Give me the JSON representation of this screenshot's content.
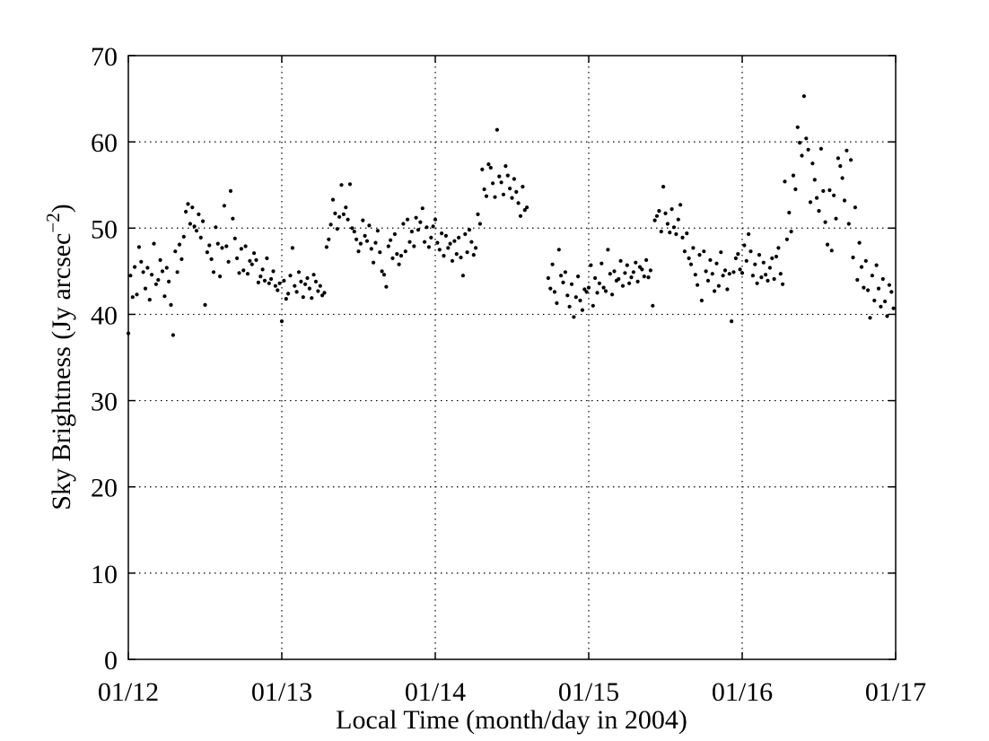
{
  "chart_data": {
    "type": "scatter",
    "xlabel": "Local Time (month/day in 2004)",
    "ylabel": "Sky Brightness (Jy arcsec",
    "ylabel_exponent": "−2",
    "ylabel_close": ")",
    "xlim": [
      "2004-01-12",
      "2004-01-17"
    ],
    "x_unit": "day",
    "ylim": [
      0,
      70
    ],
    "x_ticks": [
      "01/12",
      "01/13",
      "01/14",
      "01/15",
      "01/16",
      "01/17"
    ],
    "y_ticks": [
      "0",
      "10",
      "20",
      "30",
      "40",
      "50",
      "60",
      "70"
    ],
    "grid": true,
    "marker_color": "#000000",
    "series": [
      {
        "x": [
          "2004-01-12 00:00",
          "2004-01-12 00:20",
          "2004-01-12 00:40",
          "2004-01-12 01:00",
          "2004-01-12 01:20",
          "2004-01-12 01:40",
          "2004-01-12 02:00",
          "2004-01-12 02:20",
          "2004-01-12 02:40",
          "2004-01-12 03:00",
          "2004-01-12 03:20",
          "2004-01-12 03:40",
          "2004-01-12 04:00",
          "2004-01-12 04:20",
          "2004-01-12 04:40",
          "2004-01-12 05:00",
          "2004-01-12 05:20",
          "2004-01-12 05:40",
          "2004-01-12 06:00",
          "2004-01-12 06:20",
          "2004-01-12 06:40",
          "2004-01-12 07:00",
          "2004-01-12 07:20",
          "2004-01-12 07:40",
          "2004-01-12 08:00",
          "2004-01-12 08:20",
          "2004-01-12 08:40",
          "2004-01-12 09:00",
          "2004-01-12 09:20",
          "2004-01-12 09:40",
          "2004-01-12 10:00",
          "2004-01-12 10:20",
          "2004-01-12 10:40",
          "2004-01-12 11:00",
          "2004-01-12 11:20",
          "2004-01-12 11:40",
          "2004-01-12 12:00",
          "2004-01-12 12:20",
          "2004-01-12 12:40",
          "2004-01-12 13:00",
          "2004-01-12 13:20",
          "2004-01-12 13:40",
          "2004-01-12 14:00",
          "2004-01-12 14:20",
          "2004-01-12 14:40",
          "2004-01-12 15:00",
          "2004-01-12 15:20",
          "2004-01-12 15:40",
          "2004-01-12 16:00",
          "2004-01-12 16:20",
          "2004-01-12 16:40",
          "2004-01-12 17:00",
          "2004-01-12 17:20",
          "2004-01-12 17:40",
          "2004-01-12 18:00",
          "2004-01-12 18:20",
          "2004-01-12 18:40",
          "2004-01-12 19:00",
          "2004-01-12 19:20",
          "2004-01-12 19:40",
          "2004-01-12 20:00",
          "2004-01-12 20:20",
          "2004-01-12 20:40",
          "2004-01-12 21:00",
          "2004-01-12 21:20",
          "2004-01-12 21:40",
          "2004-01-12 22:00",
          "2004-01-12 22:20",
          "2004-01-12 22:40",
          "2004-01-12 23:00",
          "2004-01-12 23:20",
          "2004-01-12 23:40",
          "2004-01-13 00:00",
          "2004-01-13 00:20",
          "2004-01-13 00:40",
          "2004-01-13 01:00",
          "2004-01-13 01:20",
          "2004-01-13 01:40",
          "2004-01-13 02:00",
          "2004-01-13 02:20",
          "2004-01-13 02:40",
          "2004-01-13 03:00",
          "2004-01-13 03:20",
          "2004-01-13 03:40",
          "2004-01-13 04:00",
          "2004-01-13 04:20",
          "2004-01-13 04:40",
          "2004-01-13 05:00",
          "2004-01-13 05:20",
          "2004-01-13 05:40",
          "2004-01-13 06:00",
          "2004-01-13 06:20",
          "2004-01-13 06:40",
          "2004-01-13 07:00",
          "2004-01-13 07:20",
          "2004-01-13 07:40",
          "2004-01-13 08:00",
          "2004-01-13 08:20",
          "2004-01-13 08:40",
          "2004-01-13 09:00",
          "2004-01-13 09:20",
          "2004-01-13 09:40",
          "2004-01-13 10:00",
          "2004-01-13 10:20",
          "2004-01-13 10:40",
          "2004-01-13 11:00",
          "2004-01-13 11:20",
          "2004-01-13 11:40",
          "2004-01-13 12:00",
          "2004-01-13 12:20",
          "2004-01-13 12:40",
          "2004-01-13 13:00",
          "2004-01-13 13:20",
          "2004-01-13 13:40",
          "2004-01-13 14:00",
          "2004-01-13 14:20",
          "2004-01-13 14:40",
          "2004-01-13 15:00",
          "2004-01-13 15:20",
          "2004-01-13 15:40",
          "2004-01-13 16:00",
          "2004-01-13 16:20",
          "2004-01-13 16:40",
          "2004-01-13 17:00",
          "2004-01-13 17:20",
          "2004-01-13 17:40",
          "2004-01-13 18:00",
          "2004-01-13 18:20",
          "2004-01-13 18:40",
          "2004-01-13 19:00",
          "2004-01-13 19:20",
          "2004-01-13 19:40",
          "2004-01-13 20:00",
          "2004-01-13 20:20",
          "2004-01-13 20:40",
          "2004-01-13 21:00",
          "2004-01-13 21:20",
          "2004-01-13 21:40",
          "2004-01-13 22:00",
          "2004-01-13 22:20",
          "2004-01-13 22:40",
          "2004-01-13 23:00",
          "2004-01-13 23:20",
          "2004-01-13 23:40",
          "2004-01-14 00:00",
          "2004-01-14 00:20",
          "2004-01-14 00:40",
          "2004-01-14 01:00",
          "2004-01-14 01:20",
          "2004-01-14 01:40",
          "2004-01-14 02:00",
          "2004-01-14 02:20",
          "2004-01-14 02:40",
          "2004-01-14 03:00",
          "2004-01-14 03:20",
          "2004-01-14 03:40",
          "2004-01-14 04:00",
          "2004-01-14 04:20",
          "2004-01-14 04:40",
          "2004-01-14 05:00",
          "2004-01-14 05:20",
          "2004-01-14 05:40",
          "2004-01-14 06:00",
          "2004-01-14 06:20",
          "2004-01-14 06:40",
          "2004-01-14 07:00",
          "2004-01-14 07:20",
          "2004-01-14 07:40",
          "2004-01-14 08:00",
          "2004-01-14 08:20",
          "2004-01-14 08:40",
          "2004-01-14 09:00",
          "2004-01-14 09:20",
          "2004-01-14 09:40",
          "2004-01-14 10:00",
          "2004-01-14 10:20",
          "2004-01-14 10:40",
          "2004-01-14 11:00",
          "2004-01-14 11:20",
          "2004-01-14 11:40",
          "2004-01-14 12:00",
          "2004-01-14 12:20",
          "2004-01-14 12:40",
          "2004-01-14 13:00",
          "2004-01-14 13:20",
          "2004-01-14 13:40",
          "2004-01-14 14:00",
          "2004-01-14 14:20",
          "2004-01-14 17:40",
          "2004-01-14 18:00",
          "2004-01-14 18:20",
          "2004-01-14 18:40",
          "2004-01-14 19:00",
          "2004-01-14 19:20",
          "2004-01-14 19:40",
          "2004-01-14 20:00",
          "2004-01-14 20:20",
          "2004-01-14 20:40",
          "2004-01-14 21:00",
          "2004-01-14 21:20",
          "2004-01-14 21:40",
          "2004-01-14 22:00",
          "2004-01-14 22:20",
          "2004-01-14 22:40",
          "2004-01-14 23:00",
          "2004-01-14 23:20",
          "2004-01-14 23:40",
          "2004-01-15 00:00",
          "2004-01-15 00:20",
          "2004-01-15 00:40",
          "2004-01-15 01:00",
          "2004-01-15 01:20",
          "2004-01-15 01:40",
          "2004-01-15 02:00",
          "2004-01-15 02:20",
          "2004-01-15 02:40",
          "2004-01-15 03:00",
          "2004-01-15 03:20",
          "2004-01-15 03:40",
          "2004-01-15 04:00",
          "2004-01-15 04:20",
          "2004-01-15 04:40",
          "2004-01-15 05:00",
          "2004-01-15 05:20",
          "2004-01-15 05:40",
          "2004-01-15 06:00",
          "2004-01-15 06:20",
          "2004-01-15 06:40",
          "2004-01-15 07:00",
          "2004-01-15 07:20",
          "2004-01-15 07:40",
          "2004-01-15 08:00",
          "2004-01-15 08:20",
          "2004-01-15 08:40",
          "2004-01-15 09:00",
          "2004-01-15 09:20",
          "2004-01-15 09:40",
          "2004-01-15 10:00",
          "2004-01-15 10:20",
          "2004-01-15 10:40",
          "2004-01-15 11:00",
          "2004-01-15 11:20",
          "2004-01-15 11:40",
          "2004-01-15 12:00",
          "2004-01-15 12:20",
          "2004-01-15 12:40",
          "2004-01-15 13:00",
          "2004-01-15 13:20",
          "2004-01-15 13:40",
          "2004-01-15 14:00",
          "2004-01-15 14:20",
          "2004-01-15 14:40",
          "2004-01-15 15:00",
          "2004-01-15 15:20",
          "2004-01-15 15:40",
          "2004-01-15 16:00",
          "2004-01-15 16:20",
          "2004-01-15 16:40",
          "2004-01-15 17:00",
          "2004-01-15 17:20",
          "2004-01-15 17:40",
          "2004-01-15 18:00",
          "2004-01-15 18:20",
          "2004-01-15 18:40",
          "2004-01-15 19:00",
          "2004-01-15 19:20",
          "2004-01-15 19:40",
          "2004-01-15 20:00",
          "2004-01-15 20:20",
          "2004-01-15 20:40",
          "2004-01-15 21:00",
          "2004-01-15 21:20",
          "2004-01-15 21:40",
          "2004-01-15 22:00",
          "2004-01-15 22:20",
          "2004-01-15 22:40",
          "2004-01-15 23:00",
          "2004-01-15 23:20",
          "2004-01-15 23:40",
          "2004-01-16 00:00",
          "2004-01-16 00:20",
          "2004-01-16 00:40",
          "2004-01-16 01:00",
          "2004-01-16 01:20",
          "2004-01-16 01:40",
          "2004-01-16 02:00",
          "2004-01-16 02:20",
          "2004-01-16 02:40",
          "2004-01-16 03:00",
          "2004-01-16 03:20",
          "2004-01-16 03:40",
          "2004-01-16 04:00",
          "2004-01-16 04:20",
          "2004-01-16 04:40",
          "2004-01-16 05:00",
          "2004-01-16 05:20",
          "2004-01-16 05:40",
          "2004-01-16 06:00",
          "2004-01-16 06:20",
          "2004-01-16 06:40",
          "2004-01-16 07:00",
          "2004-01-16 07:20",
          "2004-01-16 07:40",
          "2004-01-16 08:00",
          "2004-01-16 08:20",
          "2004-01-16 08:40",
          "2004-01-16 09:00",
          "2004-01-16 09:20",
          "2004-01-16 09:40",
          "2004-01-16 10:00",
          "2004-01-16 10:20",
          "2004-01-16 10:40",
          "2004-01-16 11:00",
          "2004-01-16 11:20",
          "2004-01-16 11:40",
          "2004-01-16 12:00",
          "2004-01-16 12:20",
          "2004-01-16 12:40",
          "2004-01-16 13:00",
          "2004-01-16 13:20",
          "2004-01-16 13:40",
          "2004-01-16 14:00",
          "2004-01-16 14:20",
          "2004-01-16 14:40",
          "2004-01-16 15:00",
          "2004-01-16 15:20",
          "2004-01-16 15:40",
          "2004-01-16 16:00",
          "2004-01-16 16:20",
          "2004-01-16 16:40",
          "2004-01-16 17:00",
          "2004-01-16 17:20",
          "2004-01-16 17:40",
          "2004-01-16 18:00",
          "2004-01-16 18:20",
          "2004-01-16 18:40",
          "2004-01-16 19:00",
          "2004-01-16 19:20",
          "2004-01-16 19:40",
          "2004-01-16 20:00",
          "2004-01-16 20:20",
          "2004-01-16 20:40",
          "2004-01-16 21:00",
          "2004-01-16 21:20",
          "2004-01-16 21:40",
          "2004-01-16 22:00",
          "2004-01-16 22:20",
          "2004-01-16 22:40",
          "2004-01-16 23:00",
          "2004-01-16 23:20",
          "2004-01-16 23:40"
        ],
        "y": [
          37.8,
          44.5,
          42.0,
          45.5,
          42.3,
          47.8,
          46.1,
          44.9,
          43.0,
          45.4,
          41.7,
          44.6,
          48.2,
          43.5,
          44.0,
          46.3,
          45.0,
          42.1,
          45.4,
          43.8,
          41.1,
          37.6,
          47.3,
          44.9,
          48.1,
          46.4,
          49.0,
          51.9,
          52.8,
          50.5,
          52.4,
          50.2,
          49.7,
          51.6,
          48.9,
          50.8,
          41.1,
          47.2,
          48.0,
          46.4,
          44.9,
          50.1,
          48.2,
          44.4,
          47.7,
          52.6,
          47.9,
          46.1,
          54.3,
          51.1,
          48.8,
          46.5,
          44.8,
          47.6,
          45.1,
          47.9,
          44.7,
          46.2,
          45.8,
          47.1,
          46.3,
          43.7,
          44.4,
          45.2,
          43.9,
          46.5,
          43.6,
          44.1,
          45.0,
          43.3,
          42.8,
          43.6,
          39.2,
          43.9,
          41.8,
          42.4,
          44.5,
          47.7,
          43.3,
          42.6,
          44.9,
          43.8,
          42.0,
          43.5,
          44.2,
          43.0,
          41.9,
          44.6,
          43.8,
          42.7,
          43.3,
          42.2,
          42.5,
          47.8,
          48.7,
          50.4,
          53.3,
          51.7,
          49.9,
          51.3,
          55.0,
          51.6,
          52.4,
          51.0,
          55.1,
          50.0,
          49.6,
          48.7,
          47.3,
          48.2,
          50.9,
          49.1,
          48.5,
          50.3,
          47.6,
          46.0,
          48.3,
          49.7,
          47.2,
          45.0,
          44.6,
          43.2,
          47.9,
          48.6,
          46.5,
          49.3,
          47.0,
          45.8,
          46.8,
          50.5,
          47.3,
          51.0,
          48.4,
          49.6,
          47.9,
          51.2,
          49.8,
          50.7,
          52.3,
          48.4,
          50.1,
          47.8,
          48.9,
          50.2,
          51.0,
          48.3,
          47.5,
          49.4,
          46.8,
          49.1,
          47.7,
          48.2,
          46.2,
          48.5,
          47.0,
          48.9,
          46.6,
          44.5,
          49.3,
          47.2,
          49.8,
          48.4,
          46.9,
          47.7,
          51.6,
          50.5,
          56.8,
          54.5,
          53.7,
          57.4,
          57.0,
          55.2,
          53.6,
          61.4,
          56.0,
          55.3,
          53.9,
          57.2,
          56.1,
          54.6,
          53.5,
          55.7,
          54.2,
          52.9,
          51.4,
          54.8,
          52.1,
          52.4,
          44.2,
          43.0,
          45.8,
          42.6,
          41.3,
          47.5,
          44.5,
          43.7,
          44.9,
          42.2,
          40.9,
          43.5,
          39.7,
          42.0,
          44.4,
          41.6,
          40.5,
          42.9,
          42.6,
          43.1,
          45.7,
          41.0,
          44.2,
          42.5,
          43.6,
          45.9,
          43.1,
          42.7,
          47.5,
          44.7,
          42.3,
          45.0,
          43.9,
          44.1,
          46.2,
          43.3,
          44.8,
          45.7,
          43.6,
          44.3,
          44.9,
          46.0,
          43.8,
          45.5,
          45.2,
          44.4,
          46.3,
          44.3,
          45.1,
          41.0,
          50.9,
          51.4,
          52.0,
          49.6,
          54.8,
          51.7,
          50.5,
          49.5,
          52.2,
          50.1,
          49.3,
          51.0,
          52.7,
          48.9,
          47.3,
          49.4,
          46.5,
          45.8,
          47.7,
          44.6,
          43.4,
          46.9,
          41.6,
          47.3,
          45.0,
          43.9,
          46.3,
          44.7,
          42.7,
          45.9,
          43.3,
          47.2,
          44.5,
          45.1,
          42.9,
          44.7,
          39.2,
          44.9,
          46.5,
          47.0,
          45.2,
          44.8,
          48.0,
          46.2,
          49.3,
          47.3,
          44.5,
          45.8,
          43.6,
          46.9,
          44.3,
          46.0,
          44.6,
          43.9,
          45.4,
          46.5,
          44.1,
          46.7,
          47.7,
          44.7,
          43.5,
          55.4,
          48.7,
          51.8,
          49.6,
          56.1,
          54.5,
          61.7,
          59.9,
          58.4,
          65.3,
          60.4,
          59.1,
          53.0,
          57.5,
          55.6,
          53.5,
          52.0,
          59.2,
          54.3,
          50.7,
          48.1,
          54.4,
          47.4,
          53.8,
          51.1,
          58.1,
          57.2,
          55.8,
          53.2,
          59.0,
          50.5,
          57.9,
          46.6,
          52.4,
          44.0,
          48.3,
          45.5,
          43.1,
          46.2,
          42.8,
          39.6,
          44.5,
          41.6,
          45.7,
          43.0,
          40.9,
          44.1,
          41.5,
          39.8,
          43.4,
          42.6,
          40.7
        ]
      }
    ]
  }
}
